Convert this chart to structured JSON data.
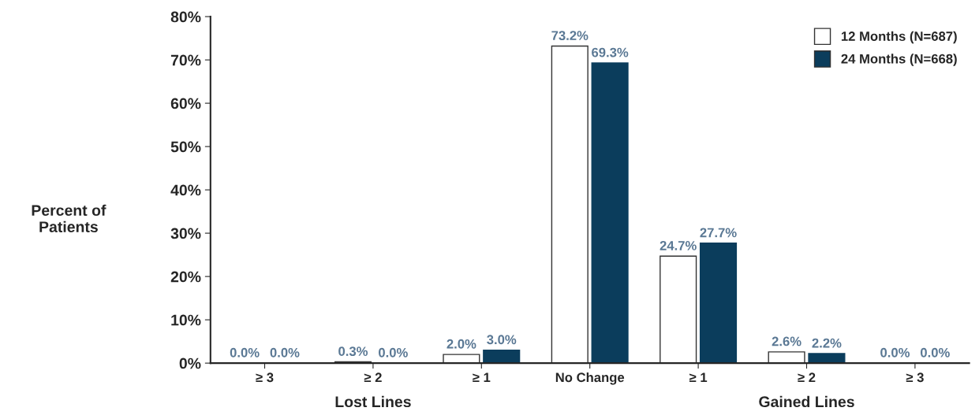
{
  "chart_data": {
    "type": "bar",
    "categories": [
      "≥ 3",
      "≥ 2",
      "≥ 1",
      "No Change",
      "≥ 1",
      "≥ 2",
      "≥ 3"
    ],
    "ylabel": "Percent of\nPatients",
    "series": [
      {
        "name": "12 Months (N=687)",
        "color": "#ffffff",
        "values": [
          0.0,
          0.3,
          2.0,
          73.2,
          24.7,
          2.6,
          0.0
        ],
        "value_labels": [
          "0.0%",
          "0.3%",
          "2.0%",
          "73.2%",
          "24.7%",
          "2.6%",
          "0.0%"
        ]
      },
      {
        "name": "24 Months (N=668)",
        "color": "#0b3d5c",
        "values": [
          0.0,
          0.0,
          3.0,
          69.3,
          27.7,
          2.2,
          0.0
        ],
        "value_labels": [
          "0.0%",
          "0.0%",
          "3.0%",
          "69.3%",
          "27.7%",
          "2.2%",
          "0.0%"
        ]
      }
    ],
    "ylim": [
      0,
      80
    ],
    "yticks": [
      {
        "value": 0,
        "label": "0%"
      },
      {
        "value": 10,
        "label": "10%"
      },
      {
        "value": 20,
        "label": "20%"
      },
      {
        "value": 30,
        "label": "30%"
      },
      {
        "value": 40,
        "label": "40%"
      },
      {
        "value": 50,
        "label": "50%"
      },
      {
        "value": 60,
        "label": "60%"
      },
      {
        "value": 70,
        "label": "70%"
      },
      {
        "value": 80,
        "label": "80%"
      }
    ],
    "annotations": [
      "Lost Lines",
      "Gained Lines"
    ],
    "legend": "top right",
    "grid": false
  }
}
